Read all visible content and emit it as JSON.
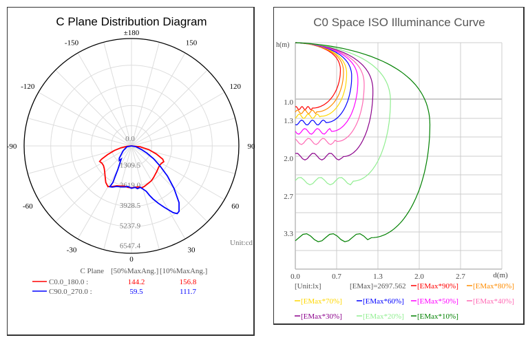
{
  "chart_data": [
    {
      "type": "polar",
      "title": "C Plane Distribution Diagram",
      "angle_labels": [
        {
          "angle": 180,
          "text": "±180"
        },
        {
          "angle": -150,
          "text": "-150"
        },
        {
          "angle": 150,
          "text": "150"
        },
        {
          "angle": -120,
          "text": "-120"
        },
        {
          "angle": 120,
          "text": "120"
        },
        {
          "angle": -90,
          "text": "-90"
        },
        {
          "angle": 90,
          "text": "90"
        },
        {
          "angle": -60,
          "text": "-60"
        },
        {
          "angle": 60,
          "text": "60"
        },
        {
          "angle": -30,
          "text": "-30"
        },
        {
          "angle": 30,
          "text": "30"
        },
        {
          "angle": 0,
          "text": "0"
        }
      ],
      "radial_labels": [
        "0.0",
        "1309.5",
        "2619.0",
        "3928.5",
        "5237.9",
        "6547.4"
      ],
      "rmax": 6547.4,
      "unit": "Unit:cd",
      "series": [
        {
          "name": "C0.0_180.0",
          "color": "#ff0000",
          "points": [
            [
              -90,
              0
            ],
            [
              -85,
              280
            ],
            [
              -80,
              700
            ],
            [
              -75,
              1150
            ],
            [
              -70,
              1650
            ],
            [
              -66,
              2130
            ],
            [
              -64,
              2300
            ],
            [
              -60,
              2220
            ],
            [
              -55,
              2220
            ],
            [
              -50,
              2300
            ],
            [
              -45,
              2450
            ],
            [
              -40,
              2650
            ],
            [
              -35,
              2900
            ],
            [
              -30,
              3050
            ],
            [
              -25,
              2900
            ],
            [
              -20,
              2750
            ],
            [
              -15,
              2700
            ],
            [
              -10,
              2650
            ],
            [
              -5,
              2700
            ],
            [
              0,
              2720
            ],
            [
              5,
              2700
            ],
            [
              10,
              2700
            ],
            [
              14,
              2800
            ],
            [
              18,
              2750
            ],
            [
              25,
              2650
            ],
            [
              30,
              2600
            ],
            [
              35,
              2500
            ],
            [
              40,
              2400
            ],
            [
              45,
              2330
            ],
            [
              50,
              2260
            ],
            [
              55,
              2220
            ],
            [
              60,
              2250
            ],
            [
              64,
              2330
            ],
            [
              67,
              2200
            ],
            [
              72,
              1700
            ],
            [
              78,
              1150
            ],
            [
              84,
              560
            ],
            [
              90,
              0
            ]
          ]
        },
        {
          "name": "C90.0_270.0",
          "color": "#0000ff",
          "points": [
            [
              -90,
              0
            ],
            [
              -80,
              300
            ],
            [
              -60,
              620
            ],
            [
              -45,
              1120
            ],
            [
              -40,
              1230
            ],
            [
              -38,
              1080
            ],
            [
              -35,
              1280
            ],
            [
              -30,
              1780
            ],
            [
              -28,
              2280
            ],
            [
              -27,
              2650
            ],
            [
              -28,
              3000
            ],
            [
              -25,
              2950
            ],
            [
              -20,
              2800
            ],
            [
              -15,
              2750
            ],
            [
              -10,
              2700
            ],
            [
              -5,
              2650
            ],
            [
              0,
              2750
            ],
            [
              5,
              2700
            ],
            [
              8,
              2800
            ],
            [
              12,
              2750
            ],
            [
              15,
              2900
            ],
            [
              18,
              3100
            ],
            [
              20,
              3400
            ],
            [
              22,
              3700
            ],
            [
              25,
              4100
            ],
            [
              28,
              4500
            ],
            [
              32,
              5100
            ],
            [
              34,
              5300
            ],
            [
              36,
              5250
            ],
            [
              40,
              4800
            ],
            [
              45,
              3900
            ],
            [
              50,
              3050
            ],
            [
              55,
              2250
            ],
            [
              60,
              1650
            ],
            [
              65,
              1100
            ],
            [
              70,
              700
            ],
            [
              80,
              280
            ],
            [
              90,
              0
            ]
          ]
        }
      ],
      "legend": {
        "header": [
          "C Plane",
          "[50%MaxAng.]",
          "[10%MaxAng.]"
        ],
        "rows": [
          {
            "label": "C0.0_180.0 :",
            "v50": "144.2",
            "v10": "156.8",
            "color": "#ff0000"
          },
          {
            "label": "C90.0_270.0 :",
            "v50": "59.5",
            "v10": "111.7",
            "color": "#0000ff"
          }
        ]
      }
    },
    {
      "type": "line",
      "title": "C0 Space ISO Illuminance Curve",
      "ylabel": "h(m)",
      "xlabel": "d(m)",
      "x_ticks": [
        "0.0",
        "0.7",
        "1.3",
        "2.0",
        "2.7"
      ],
      "y_ticks": [
        "1.0",
        "1.3",
        "2.0",
        "2.7",
        "3.3"
      ],
      "xlim": [
        0,
        3.3
      ],
      "ylim": [
        0,
        3.6
      ],
      "emax_text": "[EMax]=2697.562",
      "unit_text": "[Unit:lx]",
      "series": [
        {
          "name": "[EMax*90%]",
          "color": "#ff0000",
          "d_max": 0.72,
          "h_bottom": 1.04
        },
        {
          "name": "[EMax*80%]",
          "color": "#ff8c00",
          "d_max": 0.77,
          "h_bottom": 1.1
        },
        {
          "name": "[EMax*70%]",
          "color": "#ffd700",
          "d_max": 0.82,
          "h_bottom": 1.17
        },
        {
          "name": "[EMax*60%]",
          "color": "#0000ff",
          "d_max": 0.9,
          "h_bottom": 1.27
        },
        {
          "name": "[EMax*50%]",
          "color": "#ff00ff",
          "d_max": 1.0,
          "h_bottom": 1.41
        },
        {
          "name": "[EMax*40%]",
          "color": "#ff69b4",
          "d_max": 1.1,
          "h_bottom": 1.57
        },
        {
          "name": "[EMax*30%]",
          "color": "#8b008b",
          "d_max": 1.24,
          "h_bottom": 1.81
        },
        {
          "name": "[EMax*20%]",
          "color": "#90ee90",
          "d_max": 1.52,
          "h_bottom": 2.2
        },
        {
          "name": "[EMax*10%]",
          "color": "#008000",
          "d_max": 2.15,
          "h_bottom": 3.1
        }
      ]
    }
  ]
}
